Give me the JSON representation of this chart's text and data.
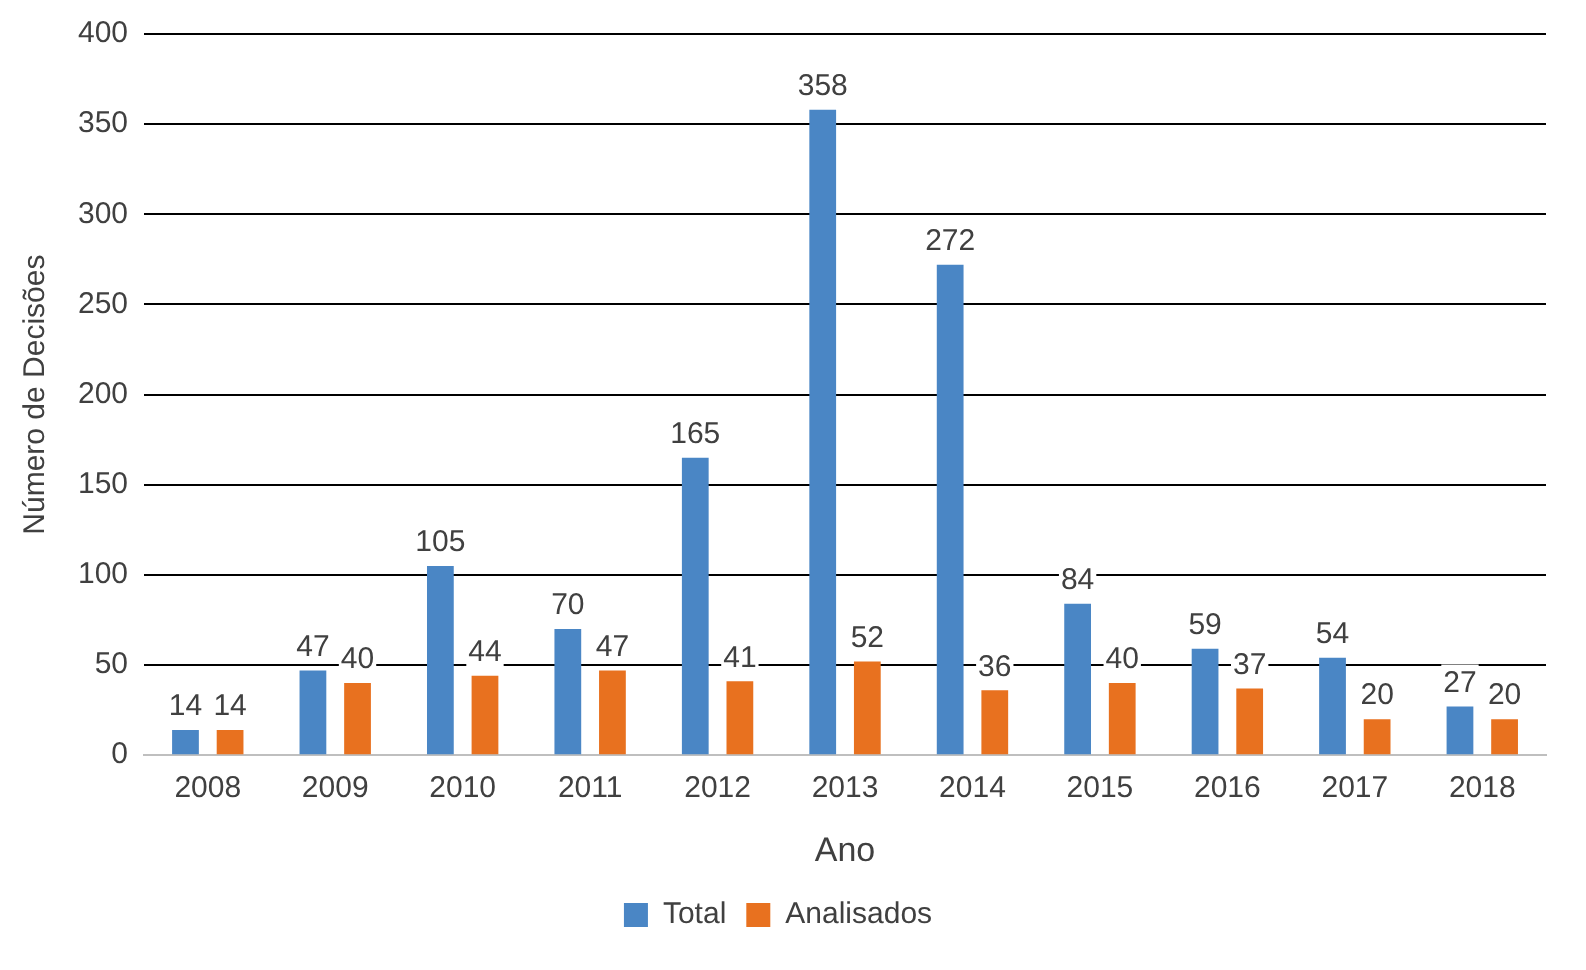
{
  "chart_data": {
    "type": "bar",
    "xlabel": "Ano",
    "ylabel": "Número de Decisões",
    "categories": [
      "2008",
      "2009",
      "2010",
      "2011",
      "2012",
      "2013",
      "2014",
      "2015",
      "2016",
      "2017",
      "2018"
    ],
    "series": [
      {
        "name": "Total",
        "color": "#4a86c5",
        "values": [
          14,
          47,
          105,
          70,
          165,
          358,
          272,
          84,
          59,
          54,
          27
        ]
      },
      {
        "name": "Analisados",
        "color": "#e8711f",
        "values": [
          14,
          40,
          44,
          47,
          41,
          52,
          36,
          40,
          37,
          20,
          20
        ]
      }
    ],
    "ylim": [
      0,
      400
    ],
    "yticks": [
      0,
      50,
      100,
      150,
      200,
      250,
      300,
      350,
      400
    ],
    "grid": "y",
    "legend": "bottom",
    "data_labels": true
  }
}
